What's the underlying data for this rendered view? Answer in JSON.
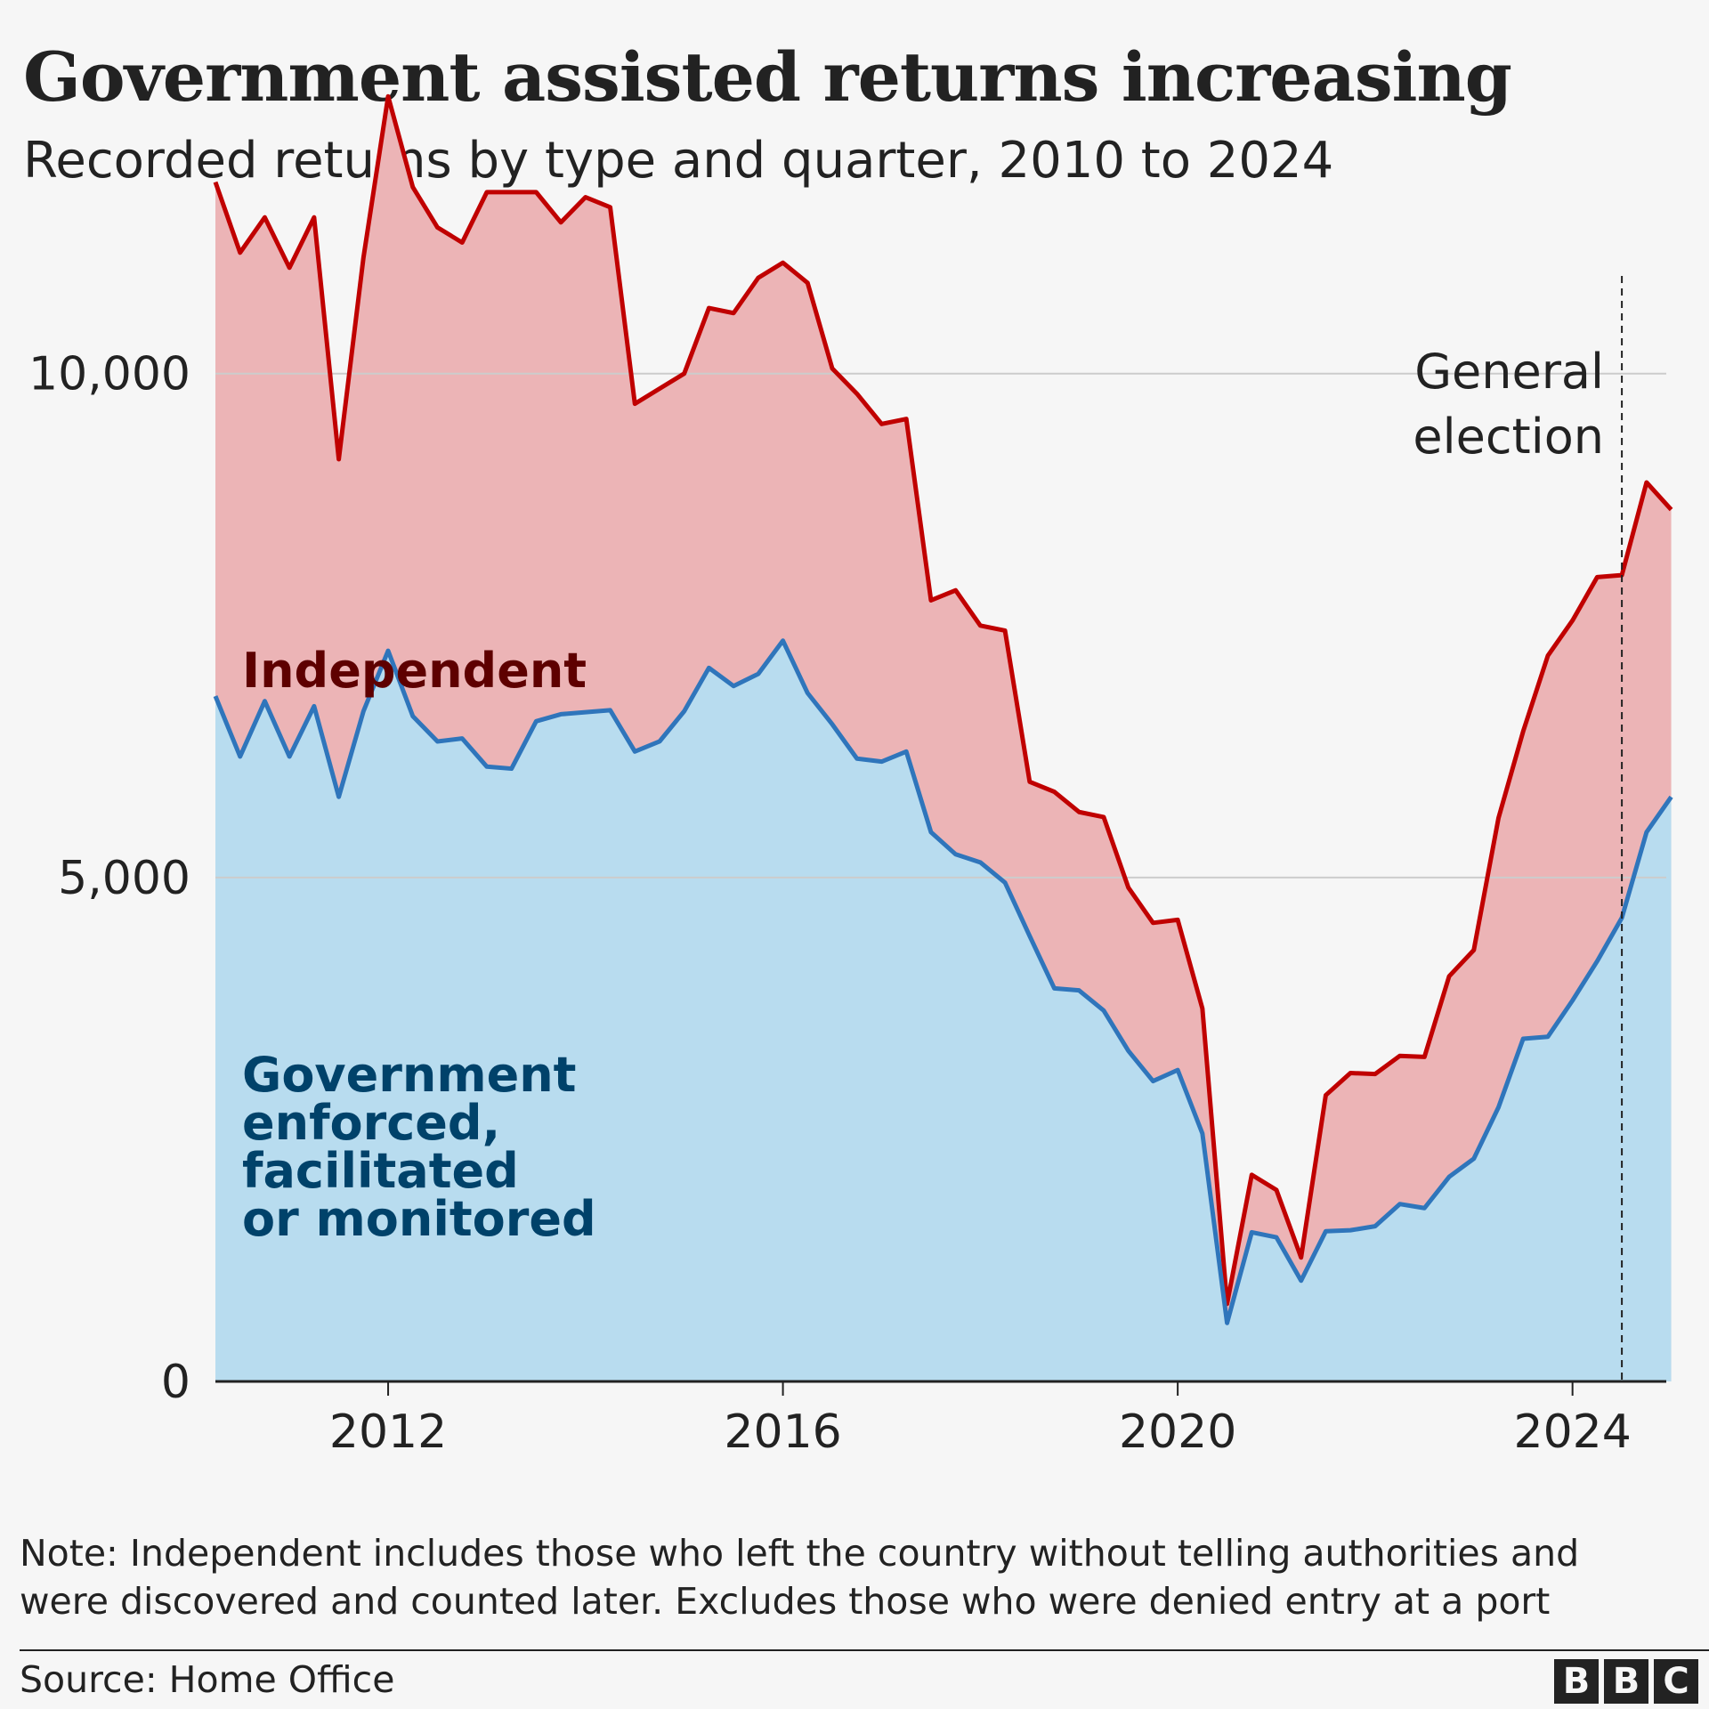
{
  "header": {
    "title": "Government assisted returns increasing",
    "subtitle": "Recorded returns by type and quarter, 2010 to 2024"
  },
  "footer": {
    "note_line1": "Note: Independent includes those who left the country without telling authorities and",
    "note_line2": "were discovered and counted later. Excludes those who were denied entry at a port",
    "source": "Source: Home Office",
    "logo_letters": [
      "B",
      "B",
      "C"
    ]
  },
  "colors": {
    "independent_line": "#c00000",
    "independent_fill": "#ecb4b6",
    "government_line": "#2f75bb",
    "government_fill": "#b8dcef",
    "independent_label": "#5e0000",
    "government_label": "#00426a",
    "grid": "#cccccc",
    "axis": "#222222"
  },
  "chart_data": {
    "type": "area",
    "stacked": true,
    "x_start": 2010.25,
    "x_step": 0.25,
    "xlim": [
      2010.25,
      2024.95
    ],
    "ylim": [
      0,
      13000
    ],
    "x_ticks": [
      {
        "value": 2012,
        "label": "2012"
      },
      {
        "value": 2016,
        "label": "2016"
      },
      {
        "value": 2020,
        "label": "2020"
      },
      {
        "value": 2024,
        "label": "2024"
      }
    ],
    "y_ticks": [
      {
        "value": 0,
        "label": "0"
      },
      {
        "value": 5000,
        "label": "5,000"
      },
      {
        "value": 10000,
        "label": "10,000"
      }
    ],
    "grid": true,
    "series": [
      {
        "name": "Government enforced, facilitated or monitored",
        "label_lines": [
          "Government",
          "enforced,",
          "facilitated",
          "or monitored"
        ],
        "values": [
          6800,
          6200,
          6750,
          6200,
          6700,
          5800,
          6650,
          7250,
          6600,
          6350,
          6380,
          6100,
          6080,
          6550,
          6620,
          6640,
          6660,
          6250,
          6350,
          6650,
          7080,
          6900,
          7020,
          7350,
          6830,
          6520,
          6180,
          6150,
          6250,
          5450,
          5230,
          5150,
          4950,
          4420,
          3900,
          3880,
          3680,
          3280,
          2980,
          3090,
          2460,
          580,
          1480,
          1430,
          1000,
          1490,
          1500,
          1540,
          1760,
          1720,
          2030,
          2210,
          2720,
          3400,
          3420,
          3780,
          4170,
          4600,
          5450,
          5800
        ]
      },
      {
        "name": "Independent",
        "label_lines": [
          "Independent"
        ],
        "total_values": [
          11900,
          11200,
          11550,
          11050,
          11550,
          9150,
          11150,
          12750,
          11850,
          11450,
          11300,
          11800,
          11800,
          11800,
          11500,
          11750,
          11650,
          9700,
          9850,
          10000,
          10650,
          10600,
          10950,
          11100,
          10900,
          10050,
          9800,
          9500,
          9550,
          7750,
          7850,
          7500,
          7450,
          5950,
          5850,
          5650,
          5600,
          4900,
          4550,
          4580,
          3700,
          770,
          2050,
          1900,
          1230,
          2840,
          3060,
          3050,
          3230,
          3220,
          4020,
          4280,
          5590,
          6450,
          7200,
          7550,
          7980,
          8000,
          8920,
          8650
        ]
      }
    ],
    "annotations": [
      {
        "x": 2024.5,
        "text_lines": [
          "General",
          "election"
        ],
        "style": "dashed-vertical-line"
      }
    ]
  }
}
